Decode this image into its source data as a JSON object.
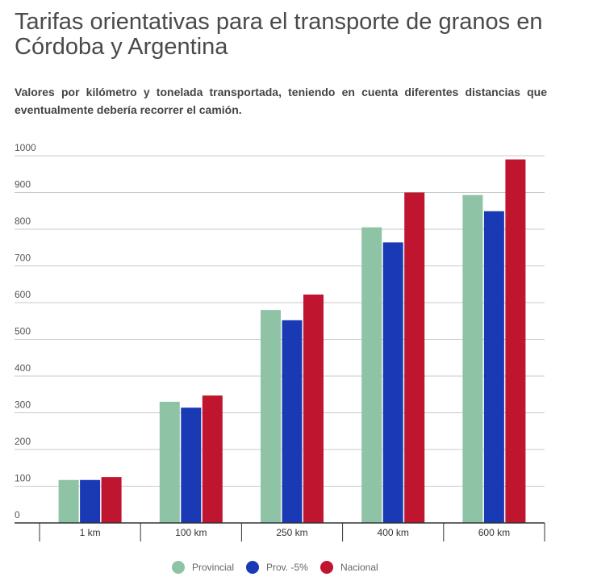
{
  "title": "Tarifas orientativas para el transporte de granos en Córdoba y Argentina",
  "subtitle": "Valores por kilómetro y tonelada transportada, teniendo en cuenta diferentes distancias que eventualmente debería recorrer el camión.",
  "chart_data": {
    "type": "bar",
    "categories": [
      "1 km",
      "100 km",
      "250 km",
      "400 km",
      "600 km"
    ],
    "series": [
      {
        "name": "Provincial",
        "color": "#8fc3a6",
        "values": [
          117,
          330,
          580,
          805,
          893
        ]
      },
      {
        "name": "Prov. -5%",
        "color": "#1a3ab5",
        "values": [
          117,
          314,
          552,
          764,
          849
        ]
      },
      {
        "name": "Nacional",
        "color": "#c0152e",
        "values": [
          125,
          347,
          622,
          900,
          990
        ]
      }
    ],
    "ylim": [
      0,
      1000
    ],
    "yticks": [
      0,
      100,
      200,
      300,
      400,
      500,
      600,
      700,
      800,
      900,
      1000
    ],
    "grid": true,
    "legend_position": "bottom"
  }
}
